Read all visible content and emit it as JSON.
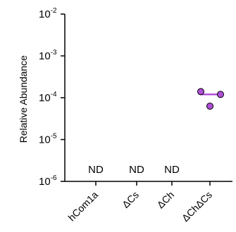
{
  "chart_data": {
    "type": "scatter",
    "ylabel": "Relative Abundance",
    "yscale": "log",
    "ylim": [
      1e-06,
      0.01
    ],
    "y_ticks": [
      {
        "base": "10",
        "exp": "-6",
        "value": 1e-06
      },
      {
        "base": "10",
        "exp": "-5",
        "value": 1e-05
      },
      {
        "base": "10",
        "exp": "-4",
        "value": 0.0001
      },
      {
        "base": "10",
        "exp": "-3",
        "value": 0.001
      },
      {
        "base": "10",
        "exp": "-2",
        "value": 0.01
      }
    ],
    "categories": [
      "hCom1a",
      "ΔCs",
      "ΔCh",
      "ΔChΔCs"
    ],
    "not_detected_label": "ND",
    "not_detected_categories": [
      "hCom1a",
      "ΔCs",
      "ΔCh"
    ],
    "points": [
      {
        "category": "ΔChΔCs",
        "y": 0.00014
      },
      {
        "category": "ΔChΔCs",
        "y": 0.00012
      },
      {
        "category": "ΔChΔCs",
        "y": 6.3e-05
      }
    ],
    "median": {
      "category": "ΔChΔCs",
      "y": 0.00012
    },
    "colors": {
      "point_fill": "#b04ed8",
      "point_stroke": "#000000",
      "median_line": "#b04ed8"
    },
    "grid": false,
    "legend": "none"
  }
}
